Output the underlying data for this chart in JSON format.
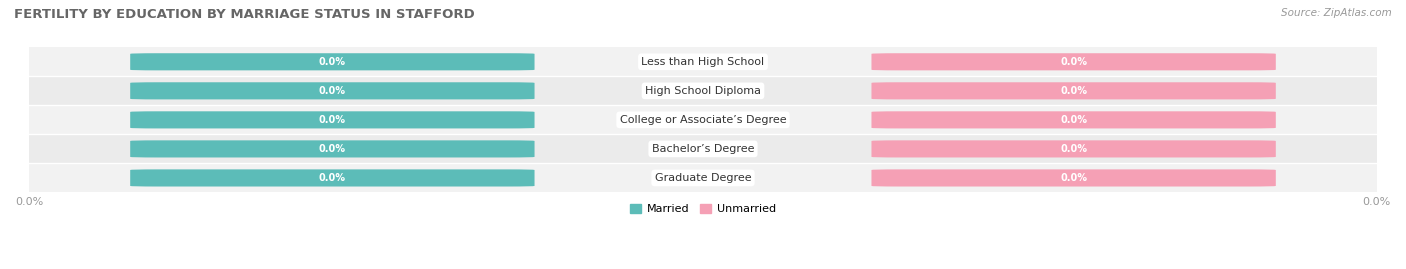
{
  "title": "FERTILITY BY EDUCATION BY MARRIAGE STATUS IN STAFFORD",
  "source": "Source: ZipAtlas.com",
  "categories": [
    "Less than High School",
    "High School Diploma",
    "College or Associate’s Degree",
    "Bachelor’s Degree",
    "Graduate Degree"
  ],
  "married_values": [
    0.0,
    0.0,
    0.0,
    0.0,
    0.0
  ],
  "unmarried_values": [
    0.0,
    0.0,
    0.0,
    0.0,
    0.0
  ],
  "married_color": "#5cbcb8",
  "unmarried_color": "#f5a0b5",
  "row_bg_even": "#f2f2f2",
  "row_bg_odd": "#ebebeb",
  "label_married": "Married",
  "label_unmarried": "Unmarried",
  "figsize": [
    14.06,
    2.69
  ],
  "dpi": 100,
  "title_fontsize": 9.5,
  "source_fontsize": 7.5,
  "tick_fontsize": 8,
  "label_fontsize": 7,
  "category_fontsize": 8
}
